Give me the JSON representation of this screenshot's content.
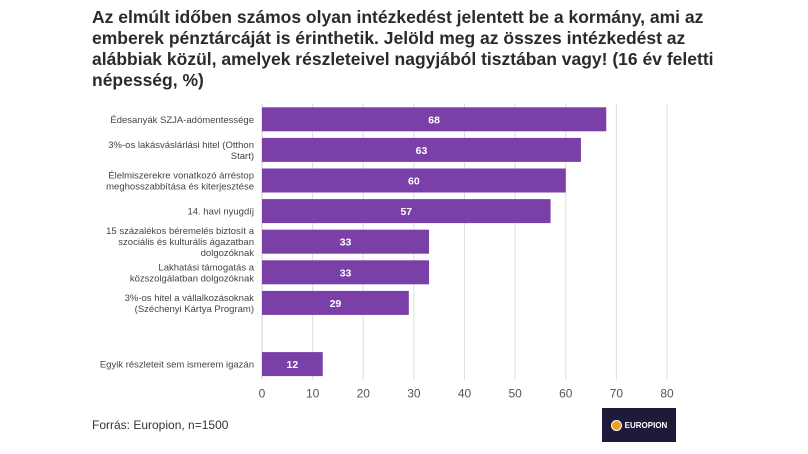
{
  "title": "Az elmúlt időben számos olyan intézkedést jelentett be a kormány, ami az emberek pénztárcáját is érinthetik. Jelöld meg az összes intézkedést az alábbiak közül, amelyek részleteivel nagyjából tisztában vagy! (16 év feletti népesség, %)",
  "source": "Forrás: Europion, n=1500",
  "logo_text": "EUROPION",
  "colors": {
    "bar": "#7b3fa8",
    "grid": "#dddddd"
  },
  "chart_data": {
    "type": "bar",
    "orientation": "horizontal",
    "categories": [
      [
        "Édesanyák SZJA-adómentessége"
      ],
      [
        "3%-os lakásváslárlási hitel (Otthon",
        "Start)"
      ],
      [
        "Élelmiszerekre vonatkozó árréstop",
        "meghosszabbítása és kiterjesztése"
      ],
      [
        "14. havi nyugdíj"
      ],
      [
        "15 százalékos béremelés biztosít a",
        "szociális és kulturális ágazatban",
        "dolgozóknak"
      ],
      [
        "Lakhatási támogatás a",
        "közszolgálatban dolgozóknak"
      ],
      [
        "3%-os hitel a vállalkozásoknak",
        "(Széchenyi Kártya Program)"
      ],
      [
        ""
      ],
      [
        "Egyik részleteit sem ismerem igazán"
      ]
    ],
    "values": [
      68,
      63,
      60,
      57,
      33,
      33,
      29,
      null,
      12
    ],
    "xlim": [
      0,
      80
    ],
    "xticks": [
      0,
      10,
      20,
      30,
      40,
      50,
      60,
      70,
      80
    ],
    "grid": true,
    "xlabel": "",
    "ylabel": ""
  }
}
